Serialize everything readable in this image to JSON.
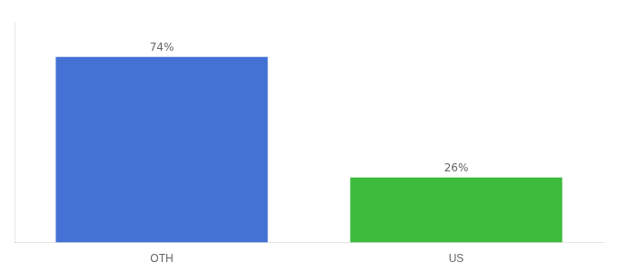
{
  "chart_data": {
    "type": "bar",
    "categories": [
      "OTH",
      "US"
    ],
    "values": [
      74,
      26
    ],
    "value_labels": [
      "74%",
      "26%"
    ],
    "colors": [
      "#4472d4",
      "#3dbb3d"
    ],
    "ylim": [
      0,
      88
    ],
    "grid": false,
    "data_labels": true,
    "tick_labels": "x"
  }
}
